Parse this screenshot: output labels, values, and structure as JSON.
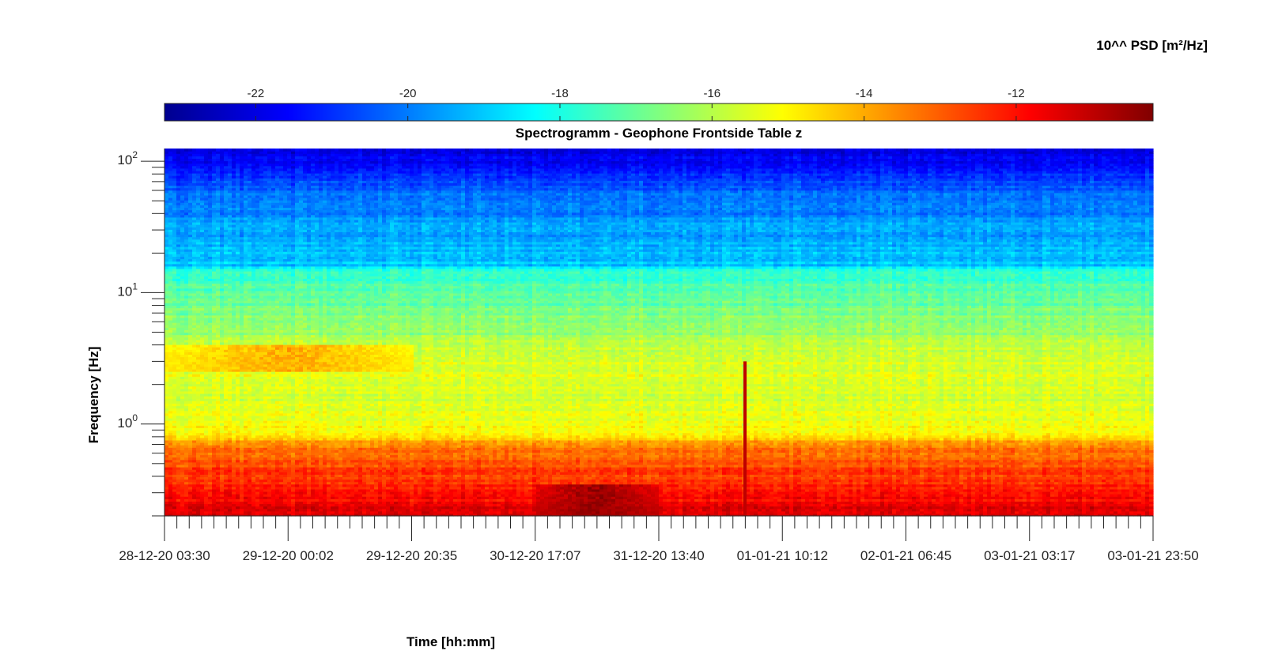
{
  "chart_data": {
    "type": "heatmap",
    "title": "Spectrogramm - Geophone Frontside Table z",
    "xlabel": "Time [hh:mm]",
    "ylabel": "Frequency [Hz]",
    "x_tick_labels": [
      "28-12-20 03:30",
      "29-12-20 00:02",
      "29-12-20 20:35",
      "30-12-20 17:07",
      "31-12-20 13:40",
      "01-01-21 10:12",
      "02-01-21 06:45",
      "03-01-21 03:17",
      "03-01-21 23:50"
    ],
    "x_range": [
      "28-12-20 03:30",
      "03-01-21 23:50"
    ],
    "y_scale": "log",
    "y_tick_values": [
      1,
      10,
      100
    ],
    "y_tick_labels": [
      {
        "base": "10",
        "exp": "0"
      },
      {
        "base": "10",
        "exp": "1"
      },
      {
        "base": "10",
        "exp": "2"
      }
    ],
    "y_range": [
      0.2,
      125
    ],
    "colorbar": {
      "label": "10^^ PSD [m²/Hz]",
      "range": [
        -23.2,
        -10.2
      ],
      "ticks": [
        -22,
        -20,
        -18,
        -16,
        -14,
        -12
      ],
      "tick_labels": [
        "-22",
        "-20",
        "-18",
        "-16",
        "-14",
        "-12"
      ],
      "colormap": "jet",
      "location": "top"
    },
    "psd_profile": [
      {
        "freq_hz": 0.2,
        "log10_psd": -11.3
      },
      {
        "freq_hz": 0.3,
        "log10_psd": -12.1
      },
      {
        "freq_hz": 0.5,
        "log10_psd": -12.8
      },
      {
        "freq_hz": 0.7,
        "log10_psd": -13.6
      },
      {
        "freq_hz": 0.9,
        "log10_psd": -15.2
      },
      {
        "freq_hz": 1.5,
        "log10_psd": -15.6
      },
      {
        "freq_hz": 3,
        "log10_psd": -15.4
      },
      {
        "freq_hz": 5,
        "log10_psd": -16.3
      },
      {
        "freq_hz": 10,
        "log10_psd": -17.2
      },
      {
        "freq_hz": 15,
        "log10_psd": -17.9
      },
      {
        "freq_hz": 16,
        "log10_psd": -19.0
      },
      {
        "freq_hz": 30,
        "log10_psd": -19.5
      },
      {
        "freq_hz": 60,
        "log10_psd": -20.3
      },
      {
        "freq_hz": 100,
        "log10_psd": -21.6
      },
      {
        "freq_hz": 125,
        "log10_psd": -22.2
      }
    ],
    "features": [
      {
        "kind": "narrowband",
        "freq_hz_range": [
          2.5,
          4
        ],
        "time_range": [
          "28-12-20 03:30",
          "29-12-20 20:35"
        ],
        "log10_psd": -14.0
      },
      {
        "kind": "lowfreq_peak",
        "freq_hz_range": [
          0.2,
          0.35
        ],
        "time_range": [
          "30-12-20 17:07",
          "31-12-20 13:40"
        ],
        "log10_psd": -10.5
      },
      {
        "kind": "transient",
        "time": "01-01-21 04:00",
        "freq_hz_range": [
          0.2,
          3
        ],
        "log10_psd": -11.0
      }
    ],
    "grid": false
  }
}
